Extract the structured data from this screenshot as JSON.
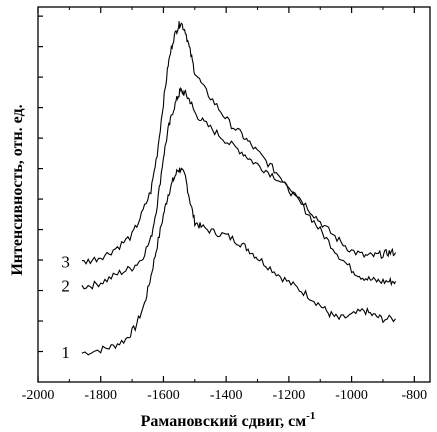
{
  "chart_data": {
    "type": "line",
    "xlabel": "Рамановский сдвиг,  см",
    "xlabel_sup": "-1",
    "ylabel": "Интенсивность, отн. ед.",
    "xlim": [
      -2000,
      -750
    ],
    "xticks": [
      -2000,
      -1800,
      -1600,
      -1400,
      -1200,
      -1000,
      -800
    ],
    "xtick_labels": [
      "-2000",
      "-1800",
      "-1600",
      "-1400",
      "-1200",
      "-1000",
      "-800"
    ],
    "ylim": [
      0,
      11
    ],
    "y_minor_tick_count": 12,
    "grid": false,
    "series": [
      {
        "name": "1",
        "x": [
          -1860,
          -1800,
          -1760,
          -1720,
          -1690,
          -1660,
          -1640,
          -1620,
          -1600,
          -1585,
          -1570,
          -1555,
          -1545,
          -1530,
          -1515,
          -1500,
          -1480,
          -1440,
          -1400,
          -1360,
          -1330,
          -1300,
          -1260,
          -1220,
          -1180,
          -1140,
          -1100,
          -1070,
          -1040,
          -1000,
          -960,
          -930,
          -900,
          -860
        ],
        "y": [
          0.85,
          0.95,
          1.05,
          1.25,
          1.6,
          2.3,
          3.1,
          4.0,
          4.9,
          5.5,
          5.9,
          6.2,
          6.25,
          6.0,
          5.3,
          4.7,
          4.55,
          4.4,
          4.3,
          4.1,
          3.9,
          3.65,
          3.35,
          3.05,
          2.8,
          2.55,
          2.25,
          2.0,
          1.85,
          1.95,
          2.1,
          1.95,
          1.85,
          1.85
        ]
      },
      {
        "name": "2",
        "x": [
          -1860,
          -1820,
          -1780,
          -1740,
          -1700,
          -1670,
          -1640,
          -1620,
          -1600,
          -1585,
          -1570,
          -1555,
          -1545,
          -1530,
          -1515,
          -1500,
          -1470,
          -1430,
          -1390,
          -1350,
          -1320,
          -1280,
          -1240,
          -1200,
          -1160,
          -1120,
          -1080,
          -1040,
          -1000,
          -970,
          -940,
          -910,
          -880,
          -860
        ],
        "y": [
          2.8,
          2.85,
          3.0,
          3.2,
          3.35,
          3.6,
          4.2,
          5.2,
          6.6,
          7.4,
          7.95,
          8.35,
          8.55,
          8.45,
          8.25,
          7.9,
          7.6,
          7.3,
          7.0,
          6.75,
          6.5,
          6.25,
          6.0,
          5.65,
          5.2,
          4.7,
          4.2,
          3.7,
          3.3,
          3.1,
          3.0,
          2.95,
          2.95,
          2.95
        ]
      },
      {
        "name": "3",
        "x": [
          -1860,
          -1820,
          -1780,
          -1740,
          -1700,
          -1670,
          -1640,
          -1620,
          -1600,
          -1585,
          -1570,
          -1555,
          -1545,
          -1530,
          -1515,
          -1500,
          -1470,
          -1430,
          -1390,
          -1350,
          -1320,
          -1280,
          -1240,
          -1200,
          -1160,
          -1120,
          -1080,
          -1040,
          -1000,
          -960,
          -930,
          -900,
          -880,
          -860
        ],
        "y": [
          3.5,
          3.6,
          3.75,
          4.0,
          4.3,
          4.9,
          5.6,
          6.7,
          8.2,
          9.3,
          10.0,
          10.4,
          10.55,
          10.3,
          9.7,
          9.1,
          8.6,
          8.1,
          7.6,
          7.25,
          6.95,
          6.55,
          6.15,
          5.75,
          5.35,
          4.9,
          4.5,
          4.15,
          3.85,
          3.7,
          3.7,
          3.75,
          3.8,
          3.8
        ]
      }
    ],
    "series_labels": [
      "1",
      "2",
      "3"
    ]
  }
}
